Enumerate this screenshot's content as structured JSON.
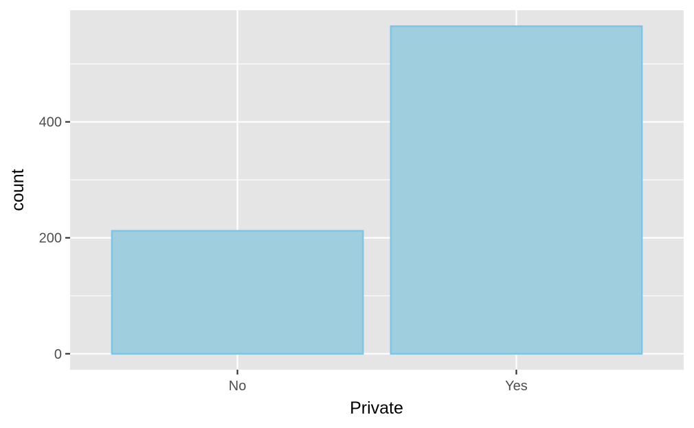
{
  "chart_data": {
    "type": "bar",
    "title": "",
    "xlabel": "Private",
    "ylabel": "count",
    "categories": [
      "No",
      "Yes"
    ],
    "values": [
      212,
      565
    ],
    "ylim": [
      -27.5,
      592.5
    ],
    "yticks": [
      0,
      200,
      400
    ],
    "ytick_labels": [
      "0",
      "200",
      "400"
    ],
    "grid": true,
    "legend": "none",
    "colors": {
      "panel_background": "#e5e5e5",
      "grid": "#ffffff",
      "bar_fill": "#9fcfdf",
      "bar_outline": "#7cc5e6"
    }
  }
}
